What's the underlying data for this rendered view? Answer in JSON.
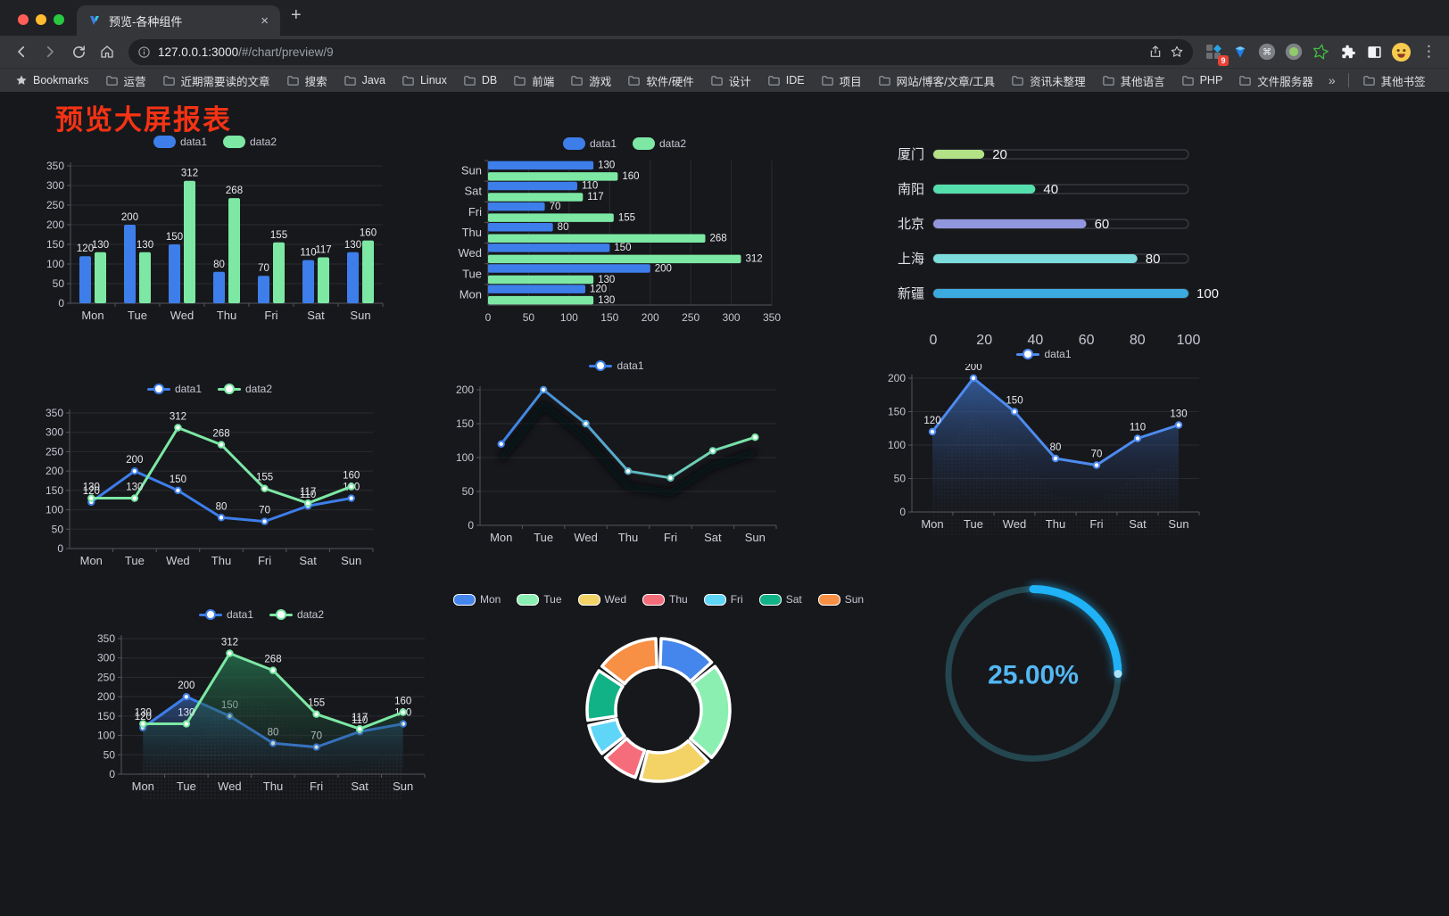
{
  "browser": {
    "tab_title": "预览-各种组件",
    "tab_close": "×",
    "new_tab": "+",
    "url_host": "127.0.0.1:3000",
    "url_path": "/#/chart/preview/9",
    "extension_badge": "9",
    "bookmarks_label": "Bookmarks",
    "bookmarks": [
      "运营",
      "近期需要读的文章",
      "搜索",
      "Java",
      "Linux",
      "DB",
      "前端",
      "游戏",
      "软件/硬件",
      "设计",
      "IDE",
      "项目",
      "网站/博客/文章/工具",
      "资讯未整理",
      "其他语言",
      "PHP",
      "文件服务器"
    ],
    "bookmarks_overflow": "»",
    "other_bookmarks": "其他书签",
    "menu_icon": "⋮"
  },
  "page": {
    "title": "预览大屏报表"
  },
  "chart_data": [
    {
      "id": "bar-vertical-grouped",
      "type": "bar",
      "ymax": 350,
      "ystep": 50,
      "labels": true,
      "categories": [
        "Mon",
        "Tue",
        "Wed",
        "Thu",
        "Fri",
        "Sat",
        "Sun"
      ],
      "series": [
        {
          "name": "data1",
          "color": "#3D7EEA",
          "values": [
            120,
            200,
            150,
            80,
            70,
            110,
            130
          ]
        },
        {
          "name": "data2",
          "color": "#7CE8A4",
          "values": [
            130,
            130,
            312,
            268,
            155,
            117,
            160
          ]
        }
      ]
    },
    {
      "id": "bar-horizontal-grouped",
      "type": "hbar",
      "xmax": 350,
      "xstep": 50,
      "labels": true,
      "categories": [
        "Mon",
        "Tue",
        "Wed",
        "Thu",
        "Fri",
        "Sat",
        "Sun"
      ],
      "series": [
        {
          "name": "data1",
          "color": "#3D7EEA",
          "values": [
            120,
            200,
            150,
            80,
            70,
            110,
            130
          ]
        },
        {
          "name": "data2",
          "color": "#7CE8A4",
          "values": [
            130,
            130,
            312,
            268,
            155,
            117,
            160
          ]
        }
      ]
    },
    {
      "id": "progress-bars",
      "type": "progress",
      "max": 100,
      "ticks": [
        0,
        20,
        40,
        60,
        80,
        100
      ],
      "items": [
        {
          "label": "厦门",
          "value": 20,
          "color": "#B3E186"
        },
        {
          "label": "南阳",
          "value": 40,
          "color": "#55DFAC"
        },
        {
          "label": "北京",
          "value": 60,
          "color": "#9097DE"
        },
        {
          "label": "上海",
          "value": 80,
          "color": "#7CDCDC"
        },
        {
          "label": "新疆",
          "value": 100,
          "color": "#3BAADF"
        }
      ]
    },
    {
      "id": "line-two-series",
      "type": "line",
      "ymax": 350,
      "ystep": 50,
      "labels": true,
      "categories": [
        "Mon",
        "Tue",
        "Wed",
        "Thu",
        "Fri",
        "Sat",
        "Sun"
      ],
      "series": [
        {
          "name": "data1",
          "color": "#3D7EEA",
          "values": [
            120,
            200,
            150,
            80,
            70,
            110,
            130
          ]
        },
        {
          "name": "data2",
          "color": "#7CE8A4",
          "values": [
            130,
            130,
            312,
            268,
            155,
            117,
            160
          ]
        }
      ]
    },
    {
      "id": "line-gradient-shadow",
      "type": "line",
      "ymax": 200,
      "ystep": 50,
      "labels": false,
      "shadow": true,
      "categories": [
        "Mon",
        "Tue",
        "Wed",
        "Thu",
        "Fri",
        "Sat",
        "Sun"
      ],
      "series": [
        {
          "name": "data1",
          "color": "#3D7EEA",
          "gradient": [
            "#3D7EEA",
            "#7CE8A4"
          ],
          "values": [
            120,
            200,
            150,
            80,
            70,
            110,
            130
          ]
        }
      ]
    },
    {
      "id": "line-area",
      "type": "line",
      "ymax": 200,
      "ystep": 50,
      "labels": true,
      "texture": true,
      "categories": [
        "Mon",
        "Tue",
        "Wed",
        "Thu",
        "Fri",
        "Sat",
        "Sun"
      ],
      "series": [
        {
          "name": "data1",
          "color": "#4E8BF0",
          "area": [
            "rgba(56,100,170,0.85)",
            "rgba(30,45,75,0.04)"
          ],
          "values": [
            120,
            200,
            150,
            80,
            70,
            110,
            130
          ]
        }
      ]
    },
    {
      "id": "line-two-areas",
      "type": "line",
      "ymax": 350,
      "ystep": 50,
      "labels": true,
      "texture": true,
      "categories": [
        "Mon",
        "Tue",
        "Wed",
        "Thu",
        "Fri",
        "Sat",
        "Sun"
      ],
      "series": [
        {
          "name": "data1",
          "color": "#3D7EEA",
          "area": [
            "rgba(52,96,168,0.7)",
            "rgba(28,42,70,0.05)"
          ],
          "values": [
            120,
            200,
            150,
            80,
            70,
            110,
            130
          ]
        },
        {
          "name": "data2",
          "color": "#7CE8A4",
          "area": [
            "rgba(38,116,80,0.8)",
            "rgba(24,58,44,0.05)"
          ],
          "values": [
            130,
            130,
            312,
            268,
            155,
            117,
            160
          ]
        }
      ]
    },
    {
      "id": "donut-pie",
      "type": "pie",
      "items": [
        {
          "label": "Mon",
          "value": 120,
          "color": "#4586EC"
        },
        {
          "label": "Tue",
          "value": 200,
          "color": "#8BEFB2"
        },
        {
          "label": "Wed",
          "value": 150,
          "color": "#F3D266"
        },
        {
          "label": "Thu",
          "value": 80,
          "color": "#F56C7B"
        },
        {
          "label": "Fri",
          "value": 70,
          "color": "#5FD5F8"
        },
        {
          "label": "Sat",
          "value": 110,
          "color": "#12B287"
        },
        {
          "label": "Sun",
          "value": 130,
          "color": "#F78F44"
        }
      ]
    },
    {
      "id": "gauge-percent",
      "type": "gauge",
      "value": 25,
      "label": "25.00%",
      "color": "#1FB2F6",
      "track": "#24464F",
      "text_color": "#53B7F3"
    }
  ]
}
